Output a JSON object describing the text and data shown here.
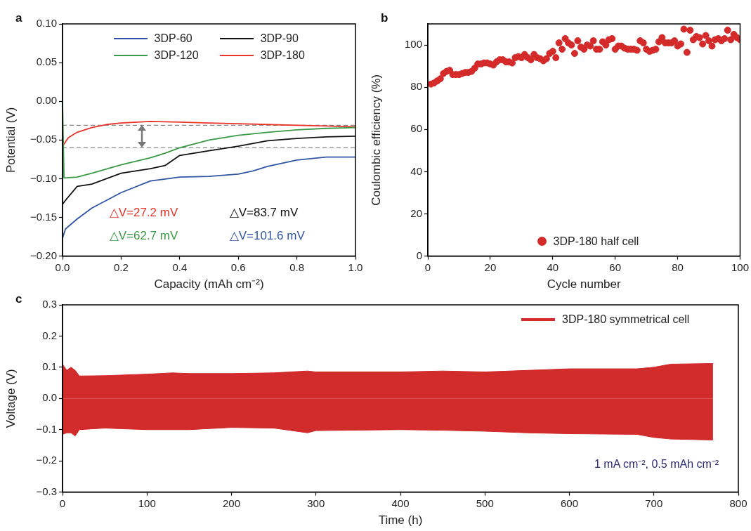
{
  "chart_data": [
    {
      "type": "line",
      "title": "a",
      "xlabel": "Capacity (mAh cm⁻²)",
      "ylabel": "Potential (V)",
      "xlim": [
        0,
        1
      ],
      "ylim": [
        -0.2,
        0.1
      ],
      "xticks": [
        {
          "value": 0,
          "label": "0.0"
        },
        {
          "value": 0.2,
          "label": "0.2"
        },
        {
          "value": 0.4,
          "label": "0.4"
        },
        {
          "value": 0.6,
          "label": "0.6"
        },
        {
          "value": 0.8,
          "label": "0.8"
        },
        {
          "value": 1,
          "label": "1.0"
        }
      ],
      "yticks": [
        {
          "value": -0.2,
          "label": "−0.20"
        },
        {
          "value": -0.15,
          "label": "−0.15"
        },
        {
          "value": -0.1,
          "label": "−0.10"
        },
        {
          "value": -0.05,
          "label": "−0.05"
        },
        {
          "value": 0,
          "label": "0.00"
        },
        {
          "value": 0.05,
          "label": "0.05"
        },
        {
          "value": 0.1,
          "label": "0.10"
        }
      ],
      "grid": false,
      "legend": "top",
      "marker": "none",
      "line_style": "solid",
      "series": [
        {
          "name": "3DP-60",
          "color": "#2f55a4",
          "x": [
            0,
            0.01,
            0.05,
            0.1,
            0.2,
            0.3,
            0.4,
            0.5,
            0.6,
            0.65,
            0.7,
            0.8,
            0.9,
            1.0
          ],
          "values": [
            -0.177,
            -0.165,
            -0.152,
            -0.138,
            -0.118,
            -0.103,
            -0.098,
            -0.097,
            -0.094,
            -0.09,
            -0.084,
            -0.076,
            -0.072,
            -0.072
          ]
        },
        {
          "name": "3DP-90",
          "color": "#111111",
          "x": [
            0,
            0.01,
            0.05,
            0.1,
            0.2,
            0.3,
            0.35,
            0.4,
            0.5,
            0.6,
            0.7,
            0.8,
            0.9,
            1.0
          ],
          "values": [
            -0.133,
            -0.128,
            -0.11,
            -0.107,
            -0.093,
            -0.087,
            -0.083,
            -0.07,
            -0.064,
            -0.058,
            -0.051,
            -0.048,
            -0.046,
            -0.045
          ]
        },
        {
          "name": "3DP-120",
          "color": "#3a9a45",
          "x": [
            0,
            0.005,
            0.05,
            0.1,
            0.2,
            0.3,
            0.35,
            0.4,
            0.5,
            0.6,
            0.7,
            0.8,
            0.9,
            1.0
          ],
          "values": [
            0,
            -0.099,
            -0.098,
            -0.093,
            -0.082,
            -0.073,
            -0.067,
            -0.06,
            -0.05,
            -0.044,
            -0.04,
            -0.037,
            -0.035,
            -0.034
          ]
        },
        {
          "name": "3DP-180",
          "color": "#e8352b",
          "x": [
            0,
            0.02,
            0.05,
            0.1,
            0.15,
            0.2,
            0.3,
            0.4,
            0.5,
            0.6,
            0.7,
            0.8,
            0.9,
            1.0
          ],
          "values": [
            -0.058,
            -0.047,
            -0.04,
            -0.034,
            -0.03,
            -0.028,
            -0.026,
            -0.027,
            -0.028,
            -0.029,
            -0.03,
            -0.031,
            -0.032,
            -0.033
          ]
        }
      ],
      "ref_lines": [
        {
          "axis": "y",
          "value": -0.031,
          "color": "#888888",
          "line_style": "dashed"
        },
        {
          "axis": "y",
          "value": -0.06,
          "color": "#888888",
          "line_style": "dashed"
        }
      ],
      "annotations": [
        "△V=27.2 mV",
        "△V=83.7 mV",
        "△V=62.7 mV",
        "△V=101.6 mV"
      ]
    },
    {
      "type": "scatter",
      "title": "b",
      "xlabel": "Cycle number",
      "ylabel": "Coulombic efficiency (%)",
      "xlim": [
        0,
        100
      ],
      "ylim": [
        0,
        110
      ],
      "xticks": [
        0,
        20,
        40,
        60,
        80,
        100
      ],
      "yticks": [
        0,
        20,
        40,
        60,
        80,
        100
      ],
      "grid": false,
      "legend": "bottom",
      "marker": "circle",
      "series": [
        {
          "name": "3DP-180 half cell",
          "color": "#d42a2a",
          "x": [
            1,
            2,
            3,
            4,
            5,
            6,
            7,
            8,
            9,
            10,
            11,
            12,
            13,
            14,
            15,
            16,
            17,
            18,
            19,
            20,
            21,
            22,
            23,
            24,
            25,
            26,
            27,
            28,
            29,
            30,
            31,
            32,
            33,
            34,
            35,
            36,
            37,
            38,
            39,
            40,
            41,
            42,
            43,
            44,
            45,
            46,
            47,
            48,
            49,
            50,
            51,
            52,
            53,
            54,
            55,
            56,
            57,
            58,
            59,
            60,
            61,
            62,
            63,
            64,
            65,
            66,
            67,
            68,
            69,
            70,
            71,
            72,
            73,
            74,
            75,
            76,
            77,
            78,
            79,
            80,
            81,
            82,
            83,
            84,
            85,
            86,
            87,
            88,
            89,
            90,
            91,
            92,
            93,
            94,
            95,
            96,
            97,
            98,
            99,
            100
          ],
          "values": [
            81.5,
            82,
            83,
            84,
            86.5,
            87.5,
            88,
            86,
            86,
            86,
            86.5,
            87,
            87,
            87.5,
            89,
            91,
            91,
            91.5,
            91.5,
            91,
            90.5,
            92,
            93,
            93,
            92,
            92,
            91.5,
            94,
            94.5,
            94,
            95.5,
            94,
            93,
            95.5,
            94,
            93.5,
            92.5,
            93.5,
            96,
            97,
            94,
            101,
            98,
            103,
            101,
            100,
            96,
            102,
            99,
            98,
            100,
            99.5,
            102,
            98,
            98,
            101.5,
            100,
            102.5,
            103,
            98,
            99.5,
            99.5,
            98.5,
            98,
            98,
            98,
            97.5,
            102,
            101,
            98,
            97,
            97.5,
            98,
            101.5,
            103.5,
            101,
            101,
            101,
            102,
            99.5,
            100.5,
            107.5,
            96.5,
            107,
            102.5,
            104,
            103.5,
            100.5,
            104.5,
            102,
            99.5,
            102.5,
            103,
            102,
            103,
            107,
            102.5,
            105,
            103.5,
            102.5
          ]
        }
      ]
    },
    {
      "type": "area",
      "title": "c",
      "xlabel": "Time (h)",
      "ylabel": "Voltage (V)",
      "xlim": [
        0,
        800
      ],
      "ylim": [
        -0.3,
        0.3
      ],
      "xticks": [
        0,
        100,
        200,
        300,
        400,
        500,
        600,
        700,
        800
      ],
      "yticks": [
        {
          "value": -0.3,
          "label": "−0.3"
        },
        {
          "value": -0.2,
          "label": "−0.2"
        },
        {
          "value": -0.1,
          "label": "−0.1"
        },
        {
          "value": 0,
          "label": "0.0"
        },
        {
          "value": 0.1,
          "label": "0.1"
        },
        {
          "value": 0.2,
          "label": "0.2"
        },
        {
          "value": 0.3,
          "label": "0.3"
        }
      ],
      "grid": false,
      "legend": "top right",
      "series": [
        {
          "name": "3DP-180 symmetrical cell",
          "color": "#d22b2b",
          "x": [
            0,
            5,
            10,
            15,
            20,
            50,
            70,
            100,
            130,
            150,
            200,
            250,
            290,
            300,
            400,
            450,
            500,
            550,
            600,
            680,
            700,
            720,
            770
          ],
          "values": [
            0.11,
            0.09,
            0.1,
            0.09,
            0.072,
            0.073,
            0.075,
            0.078,
            0.082,
            0.08,
            0.08,
            0.082,
            0.088,
            0.085,
            0.085,
            0.088,
            0.085,
            0.09,
            0.095,
            0.095,
            0.1,
            0.11,
            0.112
          ]
        },
        {
          "color": "#d22b2b",
          "x": [
            0,
            5,
            10,
            15,
            20,
            50,
            70,
            100,
            130,
            150,
            200,
            250,
            290,
            300,
            400,
            450,
            500,
            550,
            600,
            680,
            700,
            720,
            770
          ],
          "values": [
            -0.115,
            -0.11,
            -0.11,
            -0.12,
            -0.1,
            -0.095,
            -0.097,
            -0.1,
            -0.1,
            -0.1,
            -0.093,
            -0.095,
            -0.11,
            -0.103,
            -0.1,
            -0.102,
            -0.105,
            -0.11,
            -0.113,
            -0.115,
            -0.125,
            -0.13,
            -0.133
          ]
        }
      ],
      "annotations": [
        "1 mA cm⁻², 0.5 mAh cm⁻²"
      ]
    }
  ]
}
